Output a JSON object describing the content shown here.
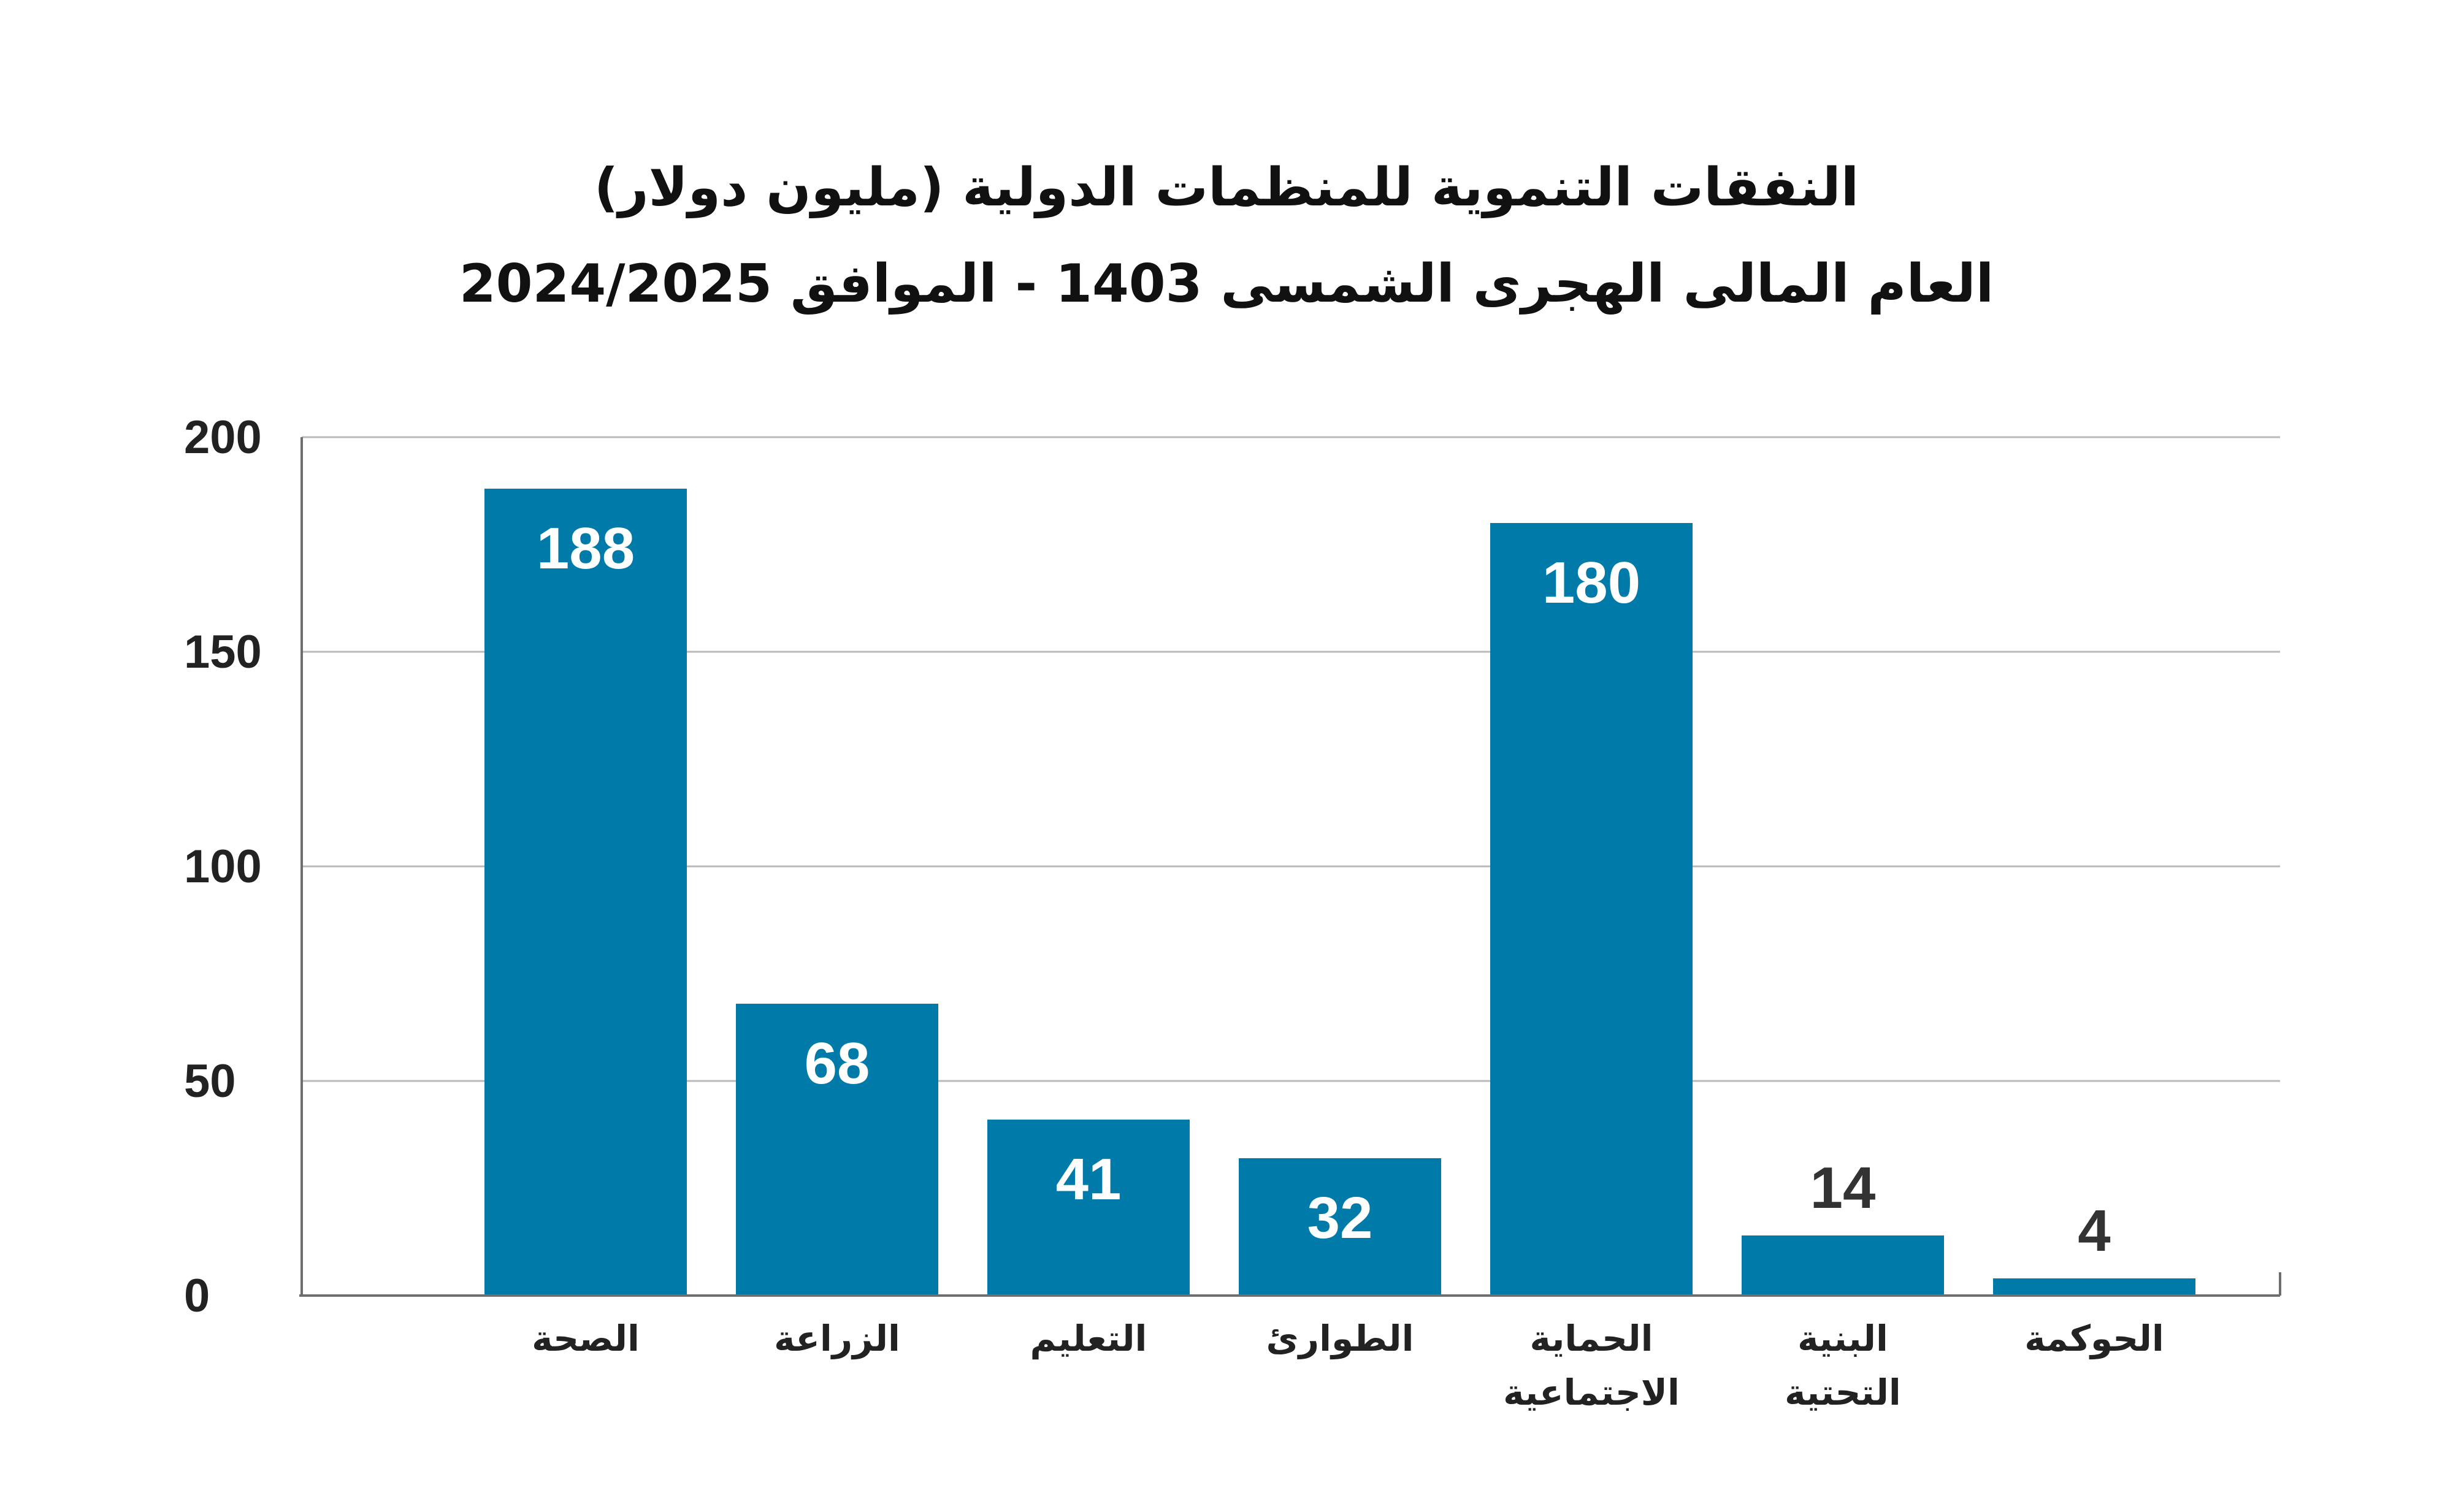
{
  "chart_data": {
    "type": "bar",
    "title": "النفقات التنموية للمنظمات الدولية (مليون دولار)",
    "subtitle": "العام المالى الهجرى الشمسى 1403 - الموافق 2024/2025",
    "categories": [
      "الصحة",
      "الزراعة",
      "التعليم",
      "الطوارئ",
      "الحماية الاجتماعية",
      "البنية التحتية",
      "الحوكمة"
    ],
    "category_lines": [
      [
        "الصحة"
      ],
      [
        "الزراعة"
      ],
      [
        "التعليم"
      ],
      [
        "الطوارئ"
      ],
      [
        "الحماية",
        "الاجتماعية"
      ],
      [
        "البنية",
        "التحتية"
      ],
      [
        "الحوكمة"
      ]
    ],
    "values": [
      188,
      68,
      41,
      32,
      180,
      14,
      4
    ],
    "data_labels": [
      "188",
      "68",
      "41",
      "32",
      "180",
      "14",
      "4"
    ],
    "ylim": [
      0,
      200
    ],
    "yticks": [
      0,
      50,
      100,
      150,
      200
    ],
    "ytick_labels": [
      "0",
      "50",
      "100",
      "150",
      "200"
    ],
    "xlabel": "",
    "ylabel": "",
    "grid": true,
    "legend": "none",
    "colors": {
      "bar": "#007aa9",
      "label_inside": "#ffffff",
      "label_outside": "#333333"
    }
  }
}
